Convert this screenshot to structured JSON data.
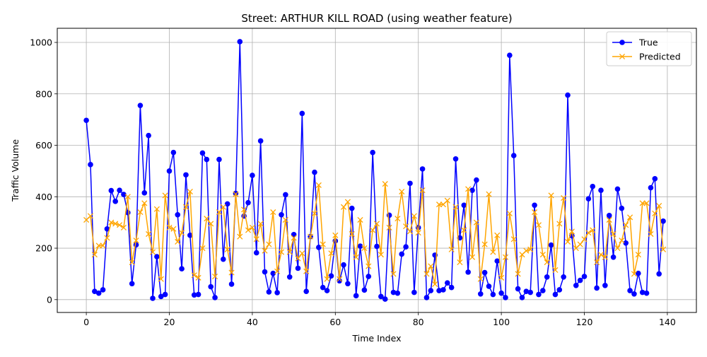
{
  "chart_data": {
    "type": "line",
    "title": "Street: ARTHUR KILL ROAD (using weather feature)",
    "xlabel": "Time Index",
    "ylabel": "Traffic Volume",
    "xlim": [
      -7,
      147
    ],
    "ylim": [
      -50,
      1055
    ],
    "xticks": [
      0,
      20,
      40,
      60,
      80,
      100,
      120,
      140
    ],
    "yticks": [
      0,
      200,
      400,
      600,
      800,
      1000
    ],
    "grid": true,
    "legend_position": "upper right",
    "series": [
      {
        "name": "True",
        "color": "#0000ff",
        "marker": "circle",
        "values": [
          697,
          525,
          32,
          25,
          38,
          275,
          424,
          382,
          425,
          409,
          338,
          62,
          213,
          755,
          415,
          638,
          5,
          167,
          12,
          20,
          500,
          572,
          330,
          120,
          485,
          250,
          18,
          20,
          570,
          545,
          50,
          8,
          545,
          157,
          372,
          60,
          413,
          1003,
          325,
          377,
          483,
          182,
          617,
          108,
          30,
          102,
          27,
          330,
          408,
          88,
          253,
          122,
          724,
          32,
          245,
          495,
          203,
          47,
          35,
          92,
          228,
          73,
          135,
          62,
          355,
          15,
          208,
          37,
          90,
          572,
          207,
          12,
          2,
          328,
          28,
          25,
          177,
          205,
          452,
          28,
          280,
          508,
          8,
          35,
          173,
          35,
          38,
          65,
          47,
          547,
          240,
          367,
          107,
          425,
          465,
          22,
          105,
          52,
          20,
          150,
          25,
          8,
          950,
          560,
          42,
          8,
          32,
          28,
          367,
          20,
          35,
          88,
          212,
          20,
          38,
          88,
          795,
          248,
          55,
          75,
          90,
          392,
          440,
          45,
          425,
          55,
          327,
          165,
          430,
          355,
          220,
          35,
          22,
          102,
          28,
          25,
          435,
          470,
          100,
          305
        ]
      },
      {
        "name": "Predicted",
        "color": "#ffa500",
        "marker": "x",
        "values": [
          310,
          325,
          175,
          210,
          210,
          240,
          300,
          295,
          290,
          280,
          400,
          145,
          230,
          340,
          375,
          255,
          185,
          352,
          80,
          405,
          280,
          275,
          225,
          260,
          360,
          420,
          95,
          85,
          200,
          315,
          295,
          90,
          340,
          360,
          195,
          105,
          410,
          245,
          350,
          270,
          280,
          235,
          295,
          190,
          215,
          340,
          110,
          185,
          310,
          185,
          240,
          160,
          180,
          110,
          245,
          335,
          445,
          215,
          80,
          180,
          250,
          80,
          360,
          380,
          255,
          165,
          310,
          200,
          130,
          270,
          295,
          175,
          450,
          280,
          100,
          315,
          420,
          285,
          265,
          325,
          260,
          425,
          100,
          130,
          60,
          370,
          370,
          385,
          195,
          360,
          145,
          270,
          430,
          165,
          300,
          80,
          215,
          410,
          185,
          250,
          85,
          165,
          335,
          235,
          100,
          175,
          190,
          195,
          340,
          290,
          175,
          145,
          405,
          115,
          295,
          395,
          225,
          265,
          200,
          215,
          235,
          260,
          270,
          145,
          175,
          165,
          310,
          255,
          200,
          230,
          290,
          320,
          100,
          175,
          375,
          375,
          255,
          335,
          365,
          195
        ]
      }
    ]
  }
}
